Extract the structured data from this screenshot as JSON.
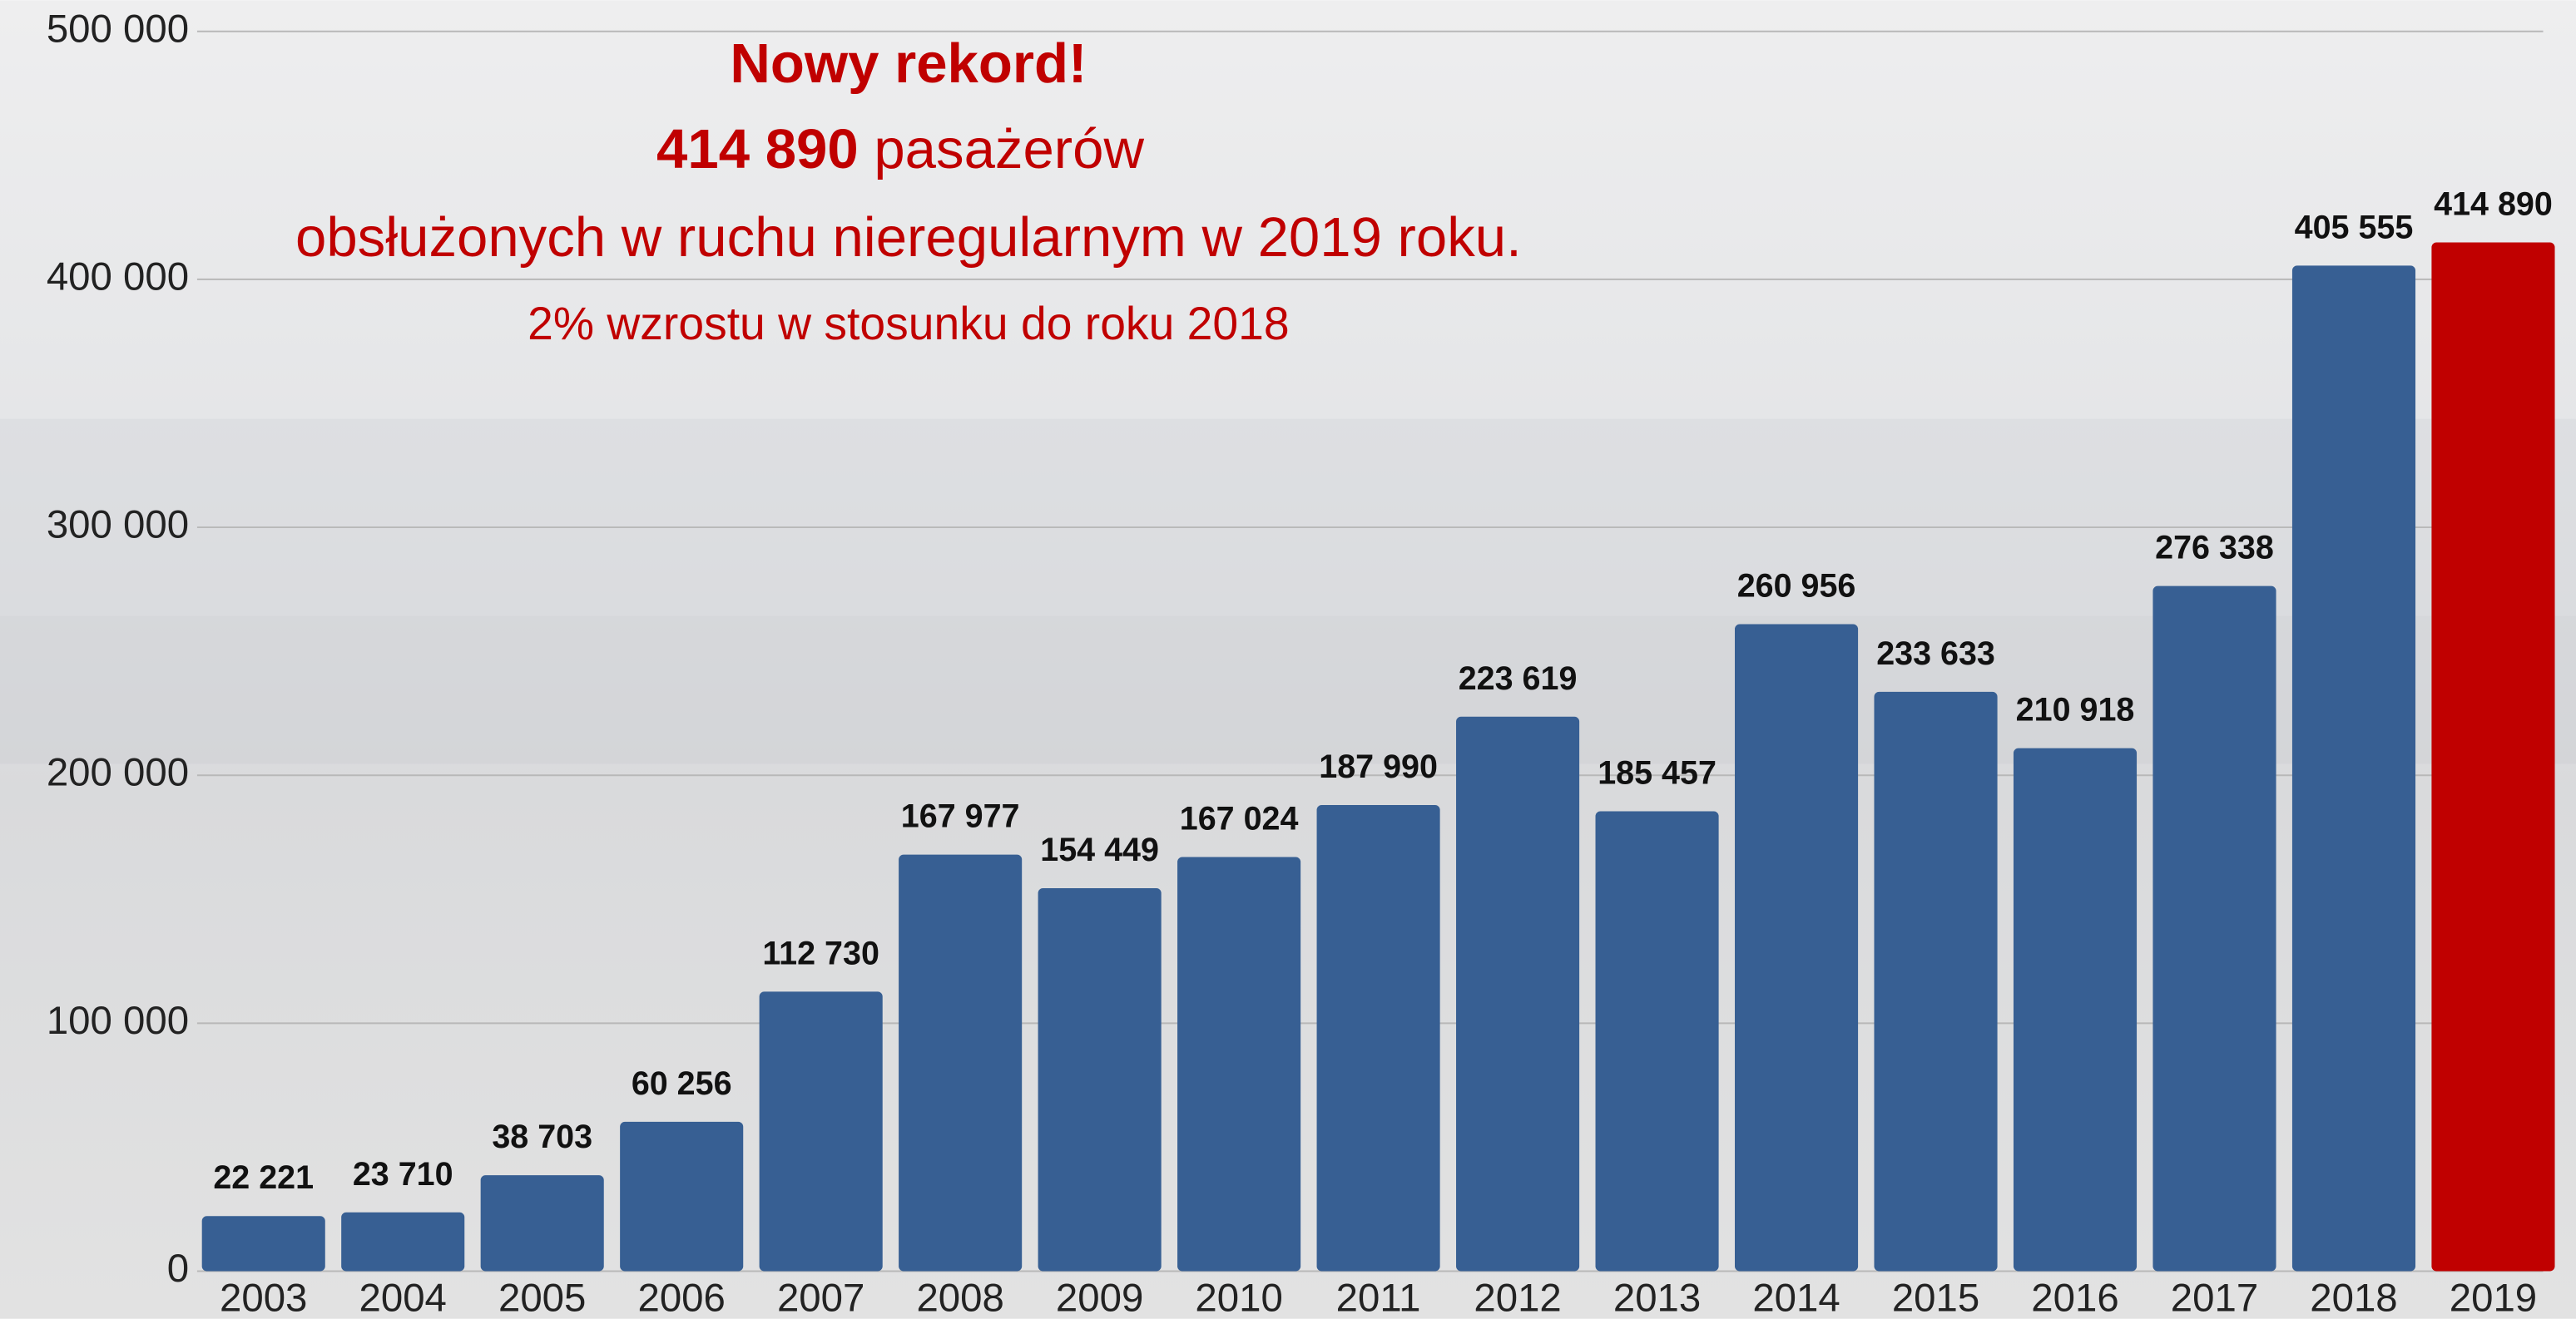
{
  "chart_data": {
    "type": "bar",
    "title": "Nowy rekord!",
    "subtitle_number": "414 890",
    "subtitle_unit": "pasażerów",
    "subtitle": "obsłużonych w ruchu nieregularnym w 2019 roku.",
    "annotation": "2% wzrostu w stosunku do roku 2018",
    "categories": [
      "2003",
      "2004",
      "2005",
      "2006",
      "2007",
      "2008",
      "2009",
      "2010",
      "2011",
      "2012",
      "2013",
      "2014",
      "2015",
      "2016",
      "2017",
      "2018",
      "2019"
    ],
    "values": [
      22221,
      23710,
      38703,
      60256,
      112730,
      167977,
      154449,
      167024,
      187990,
      223619,
      185457,
      260956,
      233633,
      210918,
      276338,
      405555,
      414890
    ],
    "value_labels": [
      "22 221",
      "23 710",
      "38 703",
      "60 256",
      "112 730",
      "167 977",
      "154 449",
      "167 024",
      "187 990",
      "223 619",
      "185 457",
      "260 956",
      "233 633",
      "210 918",
      "276 338",
      "405 555",
      "414 890"
    ],
    "colors": [
      "#375f93",
      "#375f93",
      "#375f93",
      "#375f93",
      "#375f93",
      "#375f93",
      "#375f93",
      "#375f93",
      "#375f93",
      "#375f93",
      "#375f93",
      "#375f93",
      "#375f93",
      "#375f93",
      "#375f93",
      "#375f93",
      "#c00000"
    ],
    "ylim": [
      0,
      500000
    ],
    "yticks": [
      0,
      {
        "value": 100000,
        "label": "100 000"
      },
      {
        "value": 200000,
        "label": "200 000"
      },
      {
        "value": 300000,
        "label": "300 000"
      },
      {
        "value": 400000,
        "label": "400 000"
      },
      {
        "value": 500000,
        "label": "500 000"
      }
    ],
    "grid": true
  }
}
